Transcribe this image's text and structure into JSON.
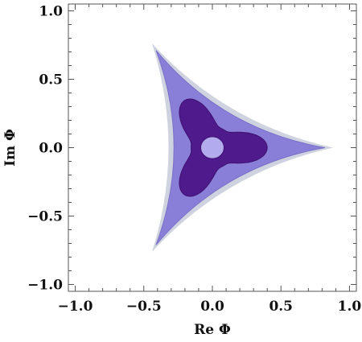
{
  "chart_data": {
    "type": "contour",
    "xlabel": "Re Φ",
    "ylabel": "Im Φ",
    "xlim": [
      -1.05,
      1.05
    ],
    "ylim": [
      -1.05,
      1.05
    ],
    "x_ticks": [
      -1.0,
      -0.5,
      0.0,
      0.5,
      1.0
    ],
    "y_ticks": [
      -1.0,
      -0.5,
      0.0,
      0.5,
      1.0
    ],
    "x_tick_labels": [
      "−1.0",
      "−0.5",
      "0.0",
      "0.5",
      "1.0"
    ],
    "y_tick_labels": [
      "−1.0",
      "−0.5",
      "0.0",
      "0.5",
      "1.0"
    ],
    "grid": false,
    "regions": [
      {
        "name": "outer-halo",
        "color": "#cfd3df",
        "vertices": [
          [
            0.88,
            0.0
          ],
          [
            -0.44,
            0.762
          ],
          [
            -0.44,
            -0.762
          ]
        ],
        "bulge": 0.12
      },
      {
        "name": "outer-triangle",
        "color": "#8a7fd8",
        "vertices": [
          [
            0.82,
            0.0
          ],
          [
            -0.41,
            0.71
          ],
          [
            -0.41,
            -0.71
          ]
        ],
        "bulge": 0.13
      },
      {
        "name": "inner-trefoil",
        "color": "#4f1a8c",
        "lobes": [
          [
            [
              0.4,
              0.0
            ],
            [
              0.24,
              0.06
            ],
            [
              0.15,
              0.13
            ],
            [
              0.0,
              0.155
            ],
            [
              -0.12,
              0.19
            ]
          ],
          [
            [
              -0.2,
              0.35
            ],
            [
              -0.19,
              0.2
            ]
          ],
          [
            [
              -0.2,
              -0.35
            ],
            [
              -0.19,
              -0.2
            ]
          ]
        ]
      },
      {
        "name": "center-hole",
        "color": "#b3acec",
        "center": [
          0.0,
          0.0
        ],
        "rx": 0.085,
        "ry": 0.08
      }
    ]
  }
}
